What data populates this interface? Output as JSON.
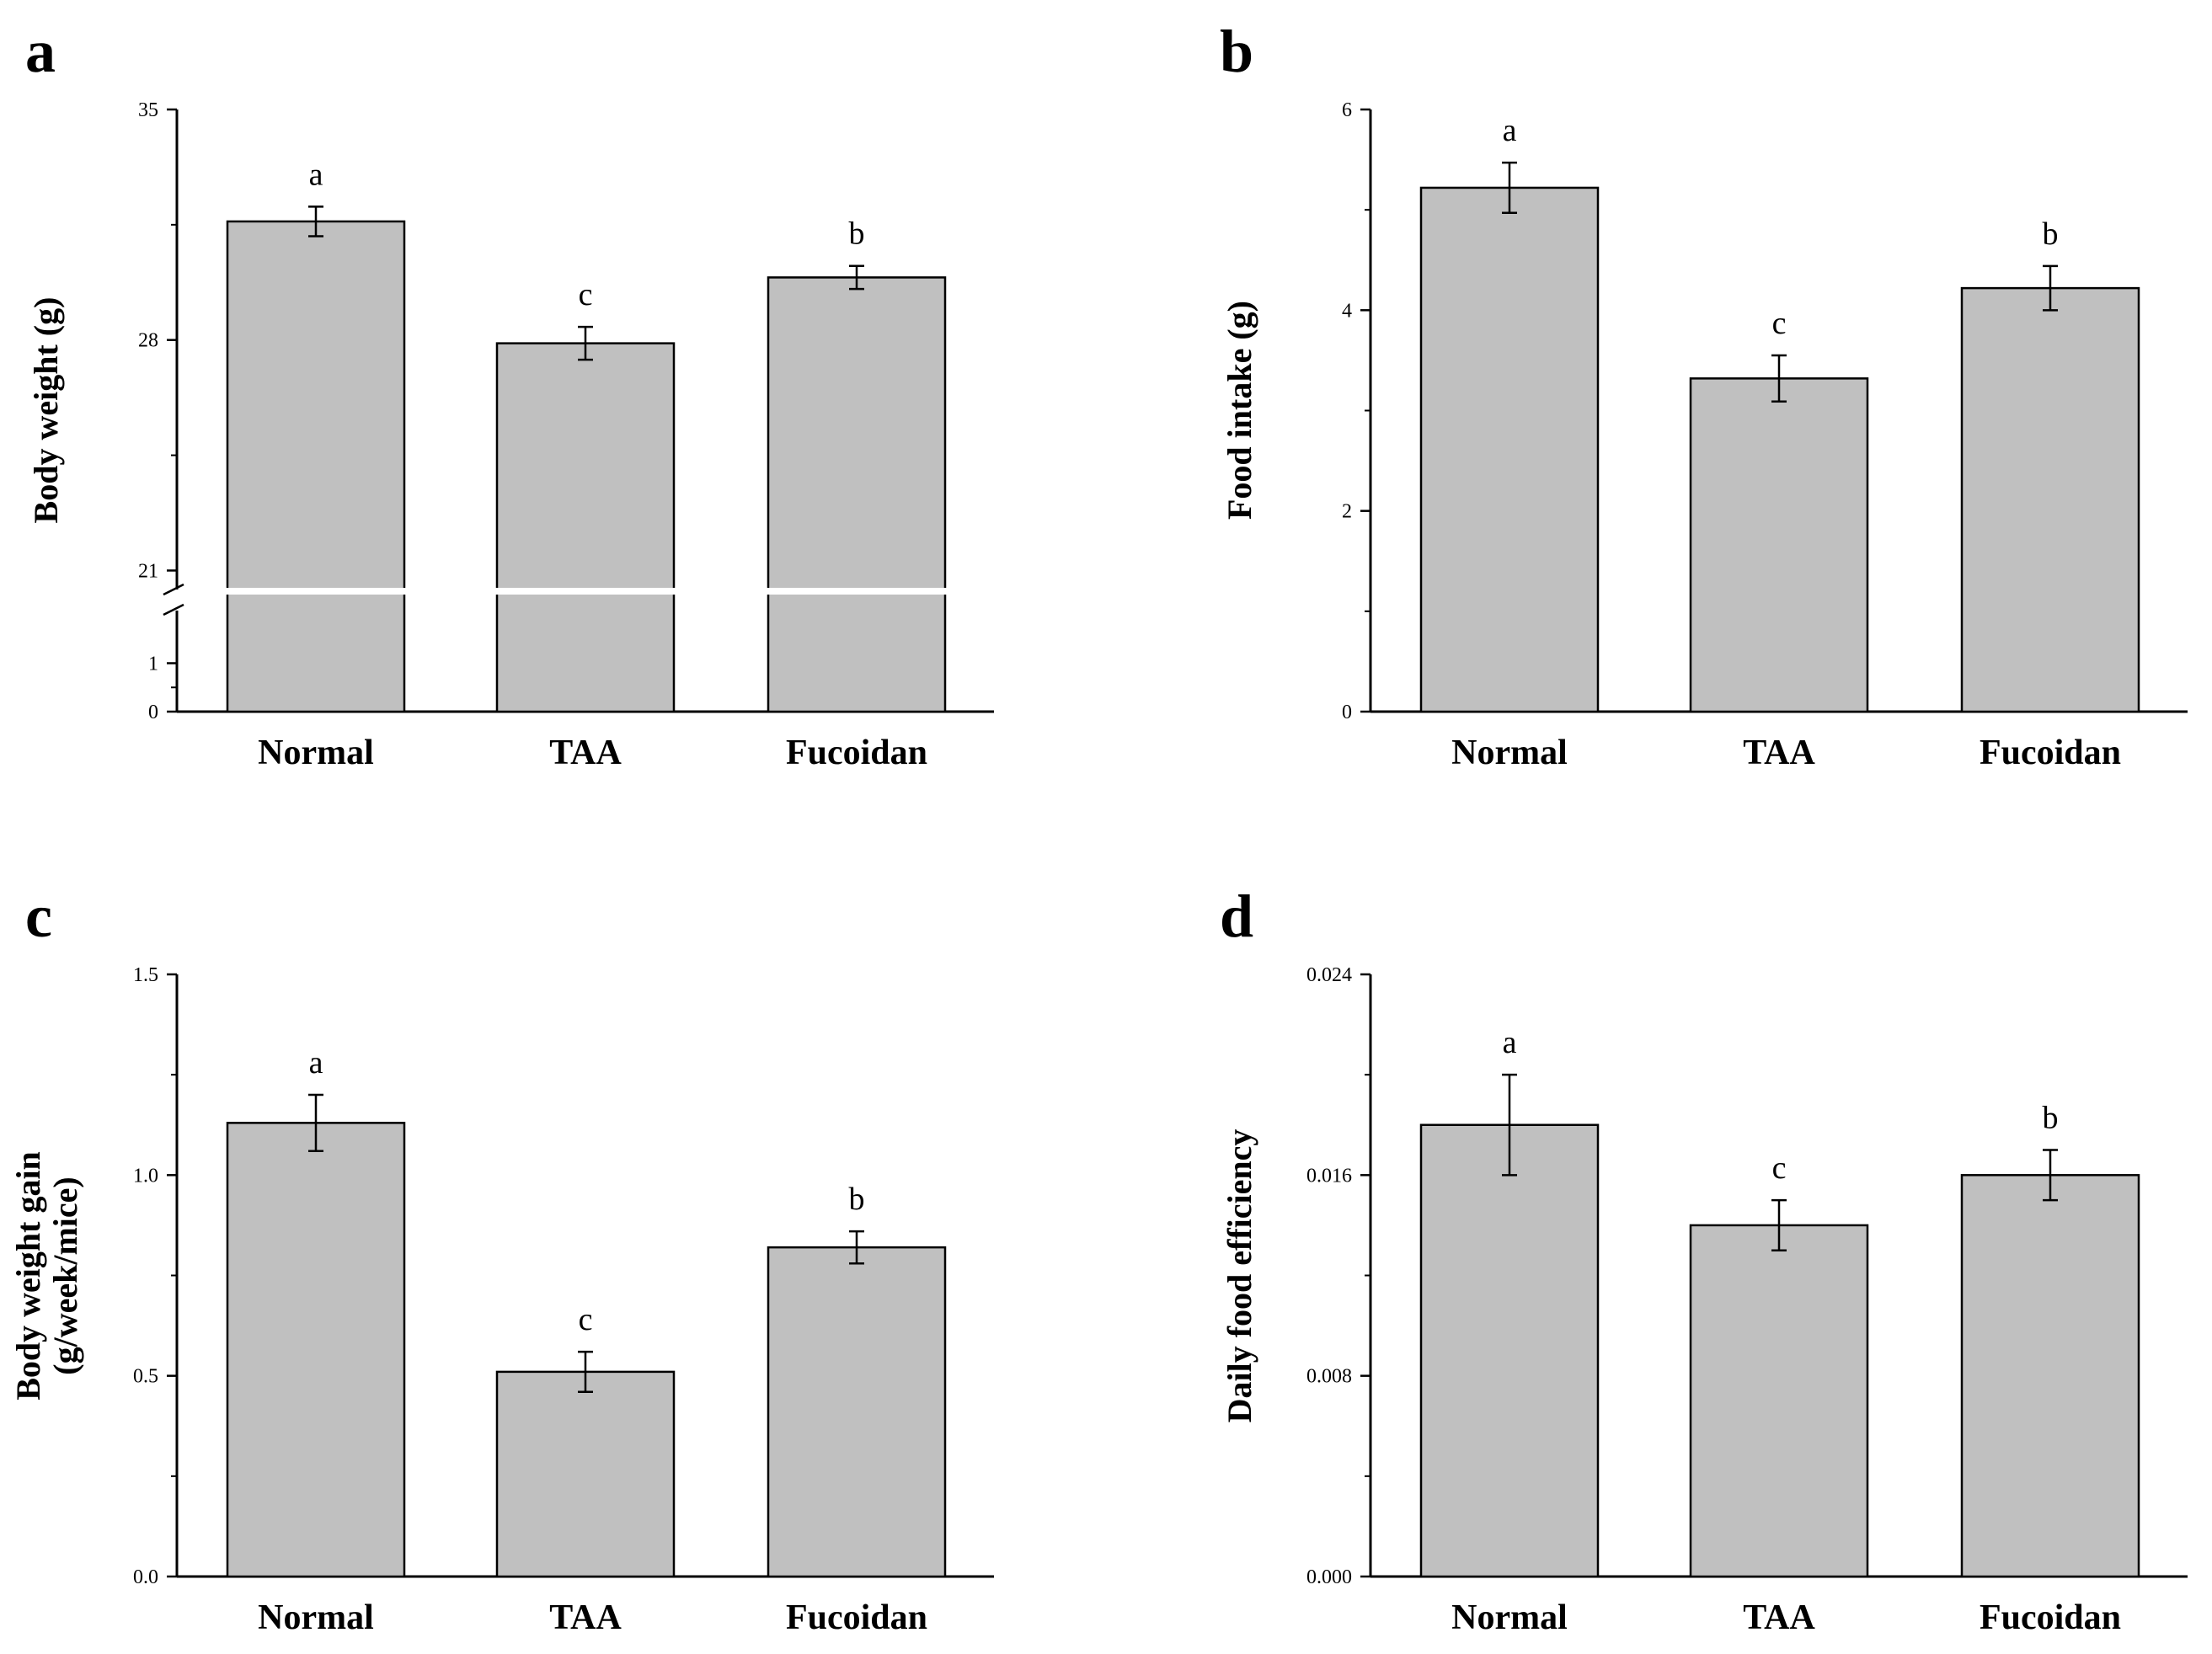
{
  "colors": {
    "bar_fill": "#c0c0c0",
    "bar_stroke": "#000000",
    "axis": "#000000"
  },
  "chart_data": [
    {
      "panel": "a",
      "type": "bar",
      "categories": [
        "Normal",
        "TAA",
        "Fucoidan"
      ],
      "values": [
        31.6,
        27.9,
        29.9
      ],
      "errors": [
        0.45,
        0.5,
        0.35
      ],
      "significance": [
        "a",
        "c",
        "b"
      ],
      "ylabel": "Body weight (g)",
      "ylabel_lines": [
        "Body weight (g)"
      ],
      "ylim": [
        0,
        35
      ],
      "broken_axis": {
        "lower": [
          0,
          2
        ],
        "upper": [
          20.5,
          35
        ]
      },
      "yticks": [
        0,
        1,
        21,
        28,
        35
      ],
      "ytick_labels": [
        "0",
        "1",
        "21",
        "28",
        "35"
      ]
    },
    {
      "panel": "b",
      "type": "bar",
      "categories": [
        "Normal",
        "TAA",
        "Fucoidan"
      ],
      "values": [
        5.22,
        3.32,
        4.22
      ],
      "errors": [
        0.25,
        0.23,
        0.22
      ],
      "significance": [
        "a",
        "c",
        "b"
      ],
      "ylabel": "Food intake (g)",
      "ylabel_lines": [
        "Food intake (g)"
      ],
      "ylim": [
        0,
        6
      ],
      "yticks": [
        0,
        2,
        4,
        6
      ],
      "ytick_labels": [
        "0",
        "2",
        "4",
        "6"
      ]
    },
    {
      "panel": "c",
      "type": "bar",
      "categories": [
        "Normal",
        "TAA",
        "Fucoidan"
      ],
      "values": [
        1.13,
        0.51,
        0.82
      ],
      "errors": [
        0.07,
        0.05,
        0.04
      ],
      "significance": [
        "a",
        "c",
        "b"
      ],
      "ylabel": "Body weight gain (g/week/mice)",
      "ylabel_lines": [
        "Body weight gain",
        "(g/week/mice)"
      ],
      "ylim": [
        0,
        1.5
      ],
      "yticks": [
        0,
        0.5,
        1.0,
        1.5
      ],
      "ytick_labels": [
        "0.0",
        "0.5",
        "1.0",
        "1.5"
      ]
    },
    {
      "panel": "d",
      "type": "bar",
      "categories": [
        "Normal",
        "TAA",
        "Fucoidan"
      ],
      "values": [
        0.018,
        0.014,
        0.016
      ],
      "errors": [
        0.002,
        0.001,
        0.001
      ],
      "significance": [
        "a",
        "c",
        "b"
      ],
      "ylabel": "Daily food efficiency",
      "ylabel_lines": [
        "Daily food efficiency"
      ],
      "ylim": [
        0,
        0.024
      ],
      "yticks": [
        0,
        0.008,
        0.016,
        0.024
      ],
      "ytick_labels": [
        "0.000",
        "0.008",
        "0.016",
        "0.024"
      ]
    }
  ]
}
